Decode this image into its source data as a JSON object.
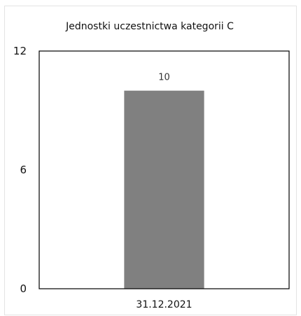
{
  "chart_data": {
    "type": "bar",
    "title": "Jednostki uczestnictwa kategorii C",
    "xlabel": "",
    "ylabel": "",
    "categories": [
      "31.12.2021"
    ],
    "values": [
      10
    ],
    "data_labels": [
      "10"
    ],
    "ylim": [
      0,
      12
    ],
    "yticks": [
      "0",
      "6",
      "12"
    ],
    "grid": false,
    "legend": "none",
    "bar_color": "#808080",
    "plot_border_color": "#000000"
  }
}
